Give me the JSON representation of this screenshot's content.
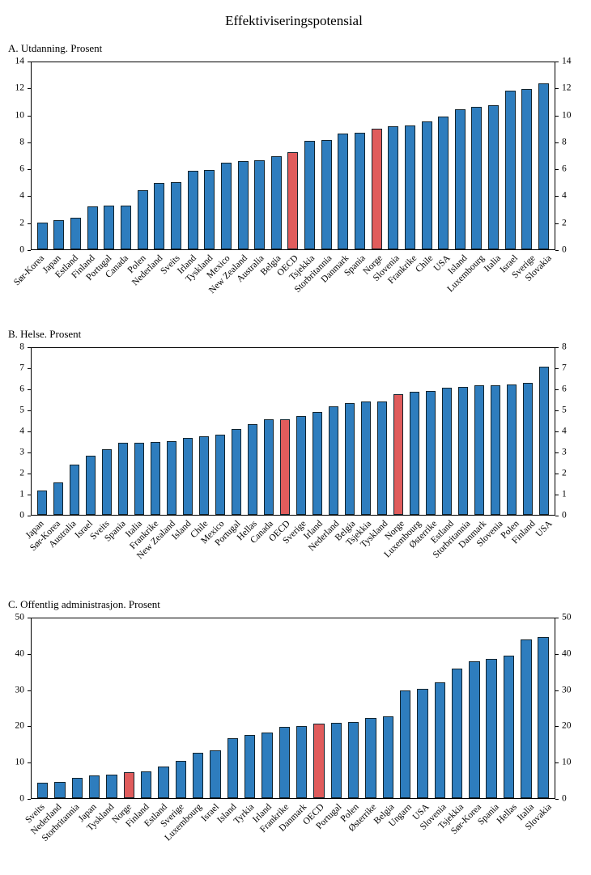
{
  "title": "Effektiviseringspotensial",
  "colors": {
    "bar": "#2e7dbe",
    "highlight": "#e05c5c",
    "axis": "#000000"
  },
  "chart_data": [
    {
      "type": "bar",
      "panel_label": "A.  Utdanning. Prosent",
      "ylim": [
        0,
        14
      ],
      "ytick_step": 2,
      "grid": false,
      "legend": "none",
      "highlight": [
        "OECD",
        "Norge"
      ],
      "categories": [
        "Sør-Korea",
        "Japan",
        "Estland",
        "Finland",
        "Portugal",
        "Canada",
        "Polen",
        "Nederland",
        "Sveits",
        "Irland",
        "Tyskland",
        "Mexico",
        "New Zealand",
        "Australia",
        "Belgia",
        "OECD",
        "Tsjekkia",
        "Storbritannia",
        "Danmark",
        "Spania",
        "Norge",
        "Slovenia",
        "Frankrike",
        "Chile",
        "USA",
        "Island",
        "Luxembourg",
        "Italia",
        "Israel",
        "Sverige",
        "Slovakia"
      ],
      "values": [
        2.0,
        2.2,
        2.35,
        3.2,
        3.25,
        3.3,
        4.4,
        4.95,
        5.05,
        5.85,
        5.95,
        6.5,
        6.6,
        6.65,
        7.0,
        7.25,
        8.1,
        8.2,
        8.65,
        8.75,
        9.05,
        9.2,
        9.3,
        9.55,
        9.95,
        10.5,
        10.65,
        10.8,
        11.85,
        12.0,
        12.4
      ]
    },
    {
      "type": "bar",
      "panel_label": "B.  Helse. Prosent",
      "ylim": [
        0,
        8
      ],
      "ytick_step": 1,
      "grid": false,
      "legend": "none",
      "highlight": [
        "OECD",
        "Norge"
      ],
      "categories": [
        "Japan",
        "Sør-Korea",
        "Australia",
        "Israel",
        "Sveits",
        "Spania",
        "Italia",
        "Frankrike",
        "New Zealand",
        "Island",
        "Chile",
        "Mexico",
        "Portugal",
        "Hellas",
        "Canada",
        "OECD",
        "Sverige",
        "Irland",
        "Nederland",
        "Belgia",
        "Tsjekkia",
        "Tyskland",
        "Norge",
        "Luxembourg",
        "Østerrike",
        "Estland",
        "Storbritannia",
        "Danmark",
        "Slovenia",
        "Polen",
        "Finland",
        "USA"
      ],
      "values": [
        1.15,
        1.55,
        2.4,
        2.85,
        3.15,
        3.45,
        3.45,
        3.5,
        3.55,
        3.7,
        3.75,
        3.85,
        4.1,
        4.35,
        4.6,
        4.6,
        4.75,
        4.95,
        5.2,
        5.35,
        5.45,
        5.45,
        5.8,
        5.9,
        5.95,
        6.1,
        6.15,
        6.2,
        6.2,
        6.25,
        6.35,
        7.1
      ]
    },
    {
      "type": "bar",
      "panel_label": "C.  Offentlig administrasjon. Prosent",
      "ylim": [
        0,
        50
      ],
      "ytick_step": 10,
      "grid": false,
      "legend": "none",
      "highlight": [
        "Norge",
        "OECD"
      ],
      "categories": [
        "Sveits",
        "Nederland",
        "Storbritannia",
        "Japan",
        "Tyskland",
        "Norge",
        "Finland",
        "Estland",
        "Sverige",
        "Luxembourg",
        "Israel",
        "Island",
        "Tyrkia",
        "Irland",
        "Frankrike",
        "Danmark",
        "OECD",
        "Portugal",
        "Polen",
        "Østerrike",
        "Belgia",
        "Ungarn",
        "USA",
        "Slovenia",
        "Tsjekkia",
        "Sør-Korea",
        "Spania",
        "Hellas",
        "Italia",
        "Slovakia"
      ],
      "values": [
        4.2,
        4.4,
        5.7,
        6.2,
        6.6,
        7.2,
        7.5,
        8.8,
        10.3,
        12.7,
        13.2,
        16.6,
        17.5,
        18.2,
        19.9,
        20.1,
        20.8,
        21.0,
        21.2,
        22.4,
        22.8,
        30.0,
        30.3,
        32.2,
        36.0,
        38.0,
        38.8,
        39.7,
        44.2,
        44.8
      ]
    }
  ]
}
